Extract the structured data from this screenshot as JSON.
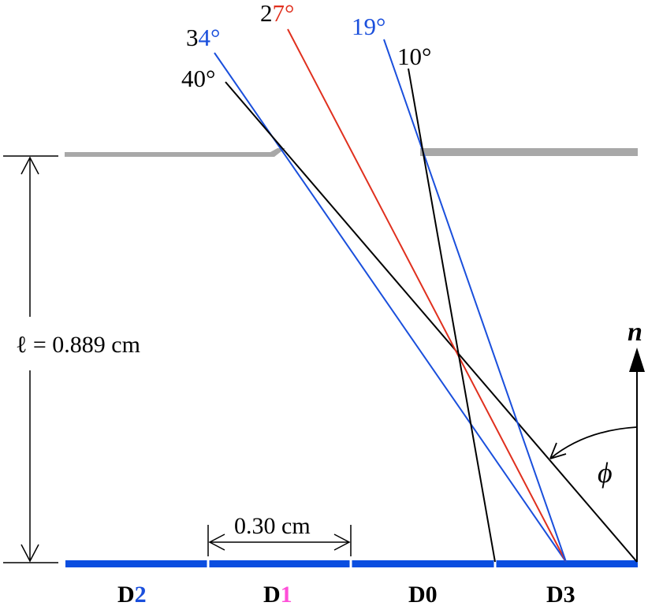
{
  "angles": [
    {
      "prefix": "3",
      "suffix": "4°",
      "prefix_color": "#000000",
      "suffix_color": "#1a4fdc"
    },
    {
      "prefix": "40°",
      "suffix": "",
      "prefix_color": "#000000",
      "suffix_color": "#000000"
    },
    {
      "prefix": "2",
      "suffix": "7°",
      "prefix_color": "#000000",
      "suffix_color": "#e0301e"
    },
    {
      "prefix": "1",
      "suffix": "9°",
      "prefix_color": "#1a4fdc",
      "suffix_color": "#1a4fdc"
    },
    {
      "prefix": "10°",
      "suffix": "",
      "prefix_color": "#000000",
      "suffix_color": "#000000"
    }
  ],
  "length_label": "ℓ = 0.889 cm",
  "width_label": "0.30 cm",
  "normal_label": "n",
  "phi_label": "ϕ",
  "detectors": [
    {
      "prefix": "D",
      "suffix": "2",
      "suffix_color": "#1a4fdc"
    },
    {
      "prefix": "D",
      "suffix": "1",
      "suffix_color": "#ff4fd8"
    },
    {
      "prefix": "D",
      "suffix": "0",
      "suffix_color": "#000000"
    },
    {
      "prefix": "D",
      "suffix": "3",
      "suffix_color": "#000000"
    }
  ],
  "colors": {
    "black": "#000000",
    "blue": "#1a4fdc",
    "red": "#e0301e",
    "magenta": "#ff4fd8",
    "gray_plate": "#a8a8a8",
    "detector_bar": "#0a4ee0"
  }
}
